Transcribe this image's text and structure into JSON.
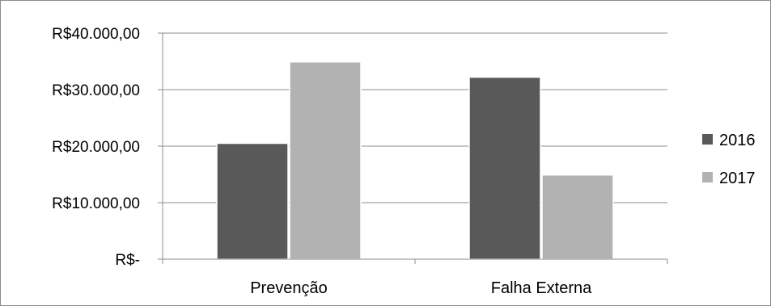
{
  "chart_data": {
    "type": "bar",
    "title": "",
    "xlabel": "",
    "ylabel": "",
    "categories": [
      "Prevenção",
      "Falha Externa"
    ],
    "series": [
      {
        "name": "2016",
        "values": [
          20500,
          32200
        ],
        "color": "#595959"
      },
      {
        "name": "2017",
        "values": [
          34900,
          14900
        ],
        "color": "#b2b2b2"
      }
    ],
    "ylim": [
      0,
      40000
    ],
    "yticks": [
      0,
      10000,
      20000,
      30000,
      40000
    ],
    "ytick_labels": [
      "R$-",
      "R$10.000,00",
      "R$20.000,00",
      "R$30.000,00",
      "R$40.000,00"
    ],
    "grid": true,
    "legend_position": "right"
  }
}
